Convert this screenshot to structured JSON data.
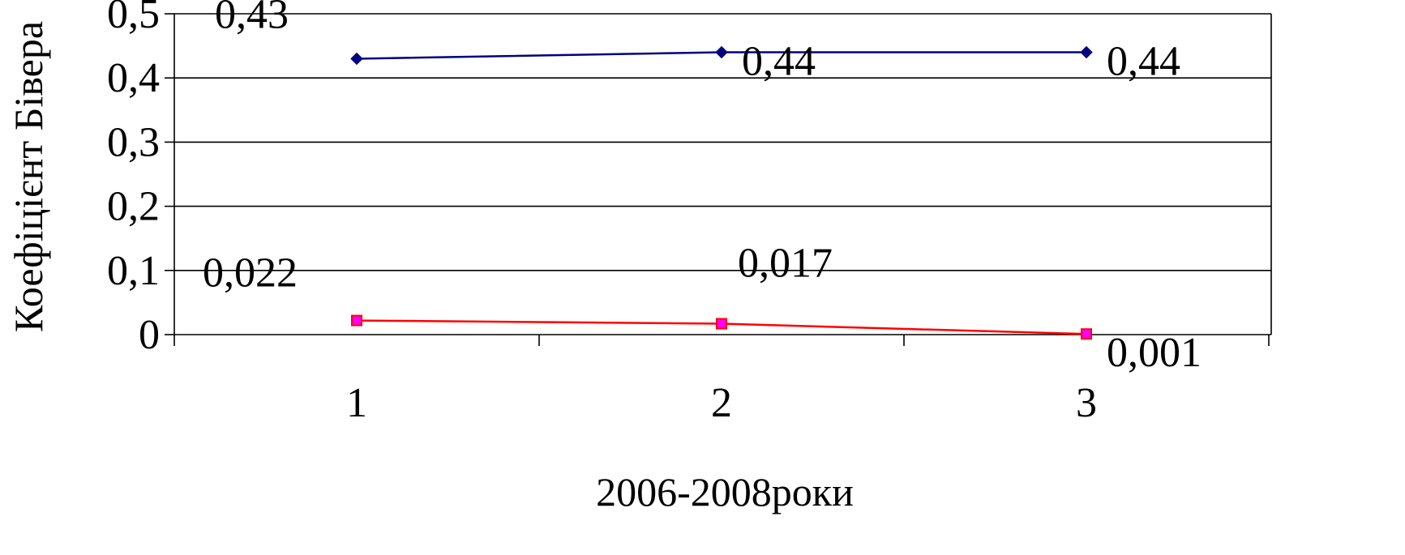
{
  "chart_data": {
    "type": "line",
    "x": [
      "1",
      "2",
      "3"
    ],
    "series": [
      {
        "values": [
          0.43,
          0.44,
          0.44
        ],
        "data_labels": [
          "0,43",
          "0,44",
          "0,44"
        ],
        "color": "#000080",
        "marker": "diamond"
      },
      {
        "values": [
          0.022,
          0.017,
          0.001
        ],
        "data_labels": [
          "0,022",
          "0,017",
          "0,001"
        ],
        "color": "#ff0000",
        "marker": "square",
        "marker_fill": "#ff00ff"
      }
    ],
    "xlabel": "2006-2008роки",
    "ylabel": "Коефіцієнт Бівера",
    "ylim": [
      0,
      0.5
    ],
    "yticks": [
      0,
      0.1,
      0.2,
      0.3,
      0.4,
      0.5
    ],
    "ytick_labels": [
      "0",
      "0,1",
      "0,2",
      "0,3",
      "0,4",
      "0,5"
    ],
    "grid": true,
    "legend": "none"
  }
}
